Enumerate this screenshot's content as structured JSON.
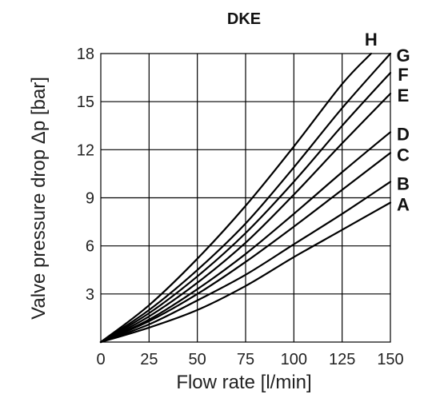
{
  "chart_data": {
    "type": "line",
    "title": "DKE",
    "xlabel": "Flow rate [l/min]",
    "ylabel": "Valve pressure drop Δp [bar]",
    "xlim": [
      0,
      150
    ],
    "ylim": [
      0,
      18
    ],
    "x_ticks": [
      0,
      25,
      50,
      75,
      100,
      125,
      150
    ],
    "y_ticks": [
      3,
      6,
      9,
      12,
      15,
      18
    ],
    "x_tick_labels": [
      "0",
      "25",
      "50",
      "75",
      "100",
      "125",
      "150"
    ],
    "y_tick_labels": [
      "3",
      "6",
      "9",
      "12",
      "15",
      "18"
    ],
    "grid": true,
    "legend": "inline labels at right end of curves",
    "series": [
      {
        "name": "A",
        "x": [
          0,
          25,
          50,
          75,
          100,
          125,
          150
        ],
        "y": [
          0,
          0.9,
          2.0,
          3.5,
          5.3,
          7.0,
          8.7
        ]
      },
      {
        "name": "B",
        "x": [
          0,
          25,
          50,
          75,
          100,
          125,
          150
        ],
        "y": [
          0,
          1.1,
          2.6,
          4.2,
          6.1,
          8.0,
          10.0
        ]
      },
      {
        "name": "C",
        "x": [
          0,
          25,
          50,
          75,
          100,
          125,
          150
        ],
        "y": [
          0,
          1.3,
          3.0,
          5.0,
          7.2,
          9.5,
          11.8
        ]
      },
      {
        "name": "D",
        "x": [
          0,
          25,
          50,
          75,
          100,
          125,
          150
        ],
        "y": [
          0,
          1.4,
          3.3,
          5.5,
          8.0,
          10.6,
          13.1
        ]
      },
      {
        "name": "E",
        "x": [
          0,
          25,
          50,
          75,
          100,
          125,
          150
        ],
        "y": [
          0,
          1.6,
          3.7,
          6.2,
          9.2,
          12.4,
          15.5
        ]
      },
      {
        "name": "F",
        "x": [
          0,
          25,
          50,
          75,
          100,
          125,
          150
        ],
        "y": [
          0,
          1.8,
          4.1,
          6.8,
          10.0,
          13.5,
          16.8
        ]
      },
      {
        "name": "G",
        "x": [
          0,
          25,
          50,
          75,
          100,
          125,
          150
        ],
        "y": [
          0,
          2.0,
          4.5,
          7.4,
          10.9,
          14.6,
          18.0
        ]
      },
      {
        "name": "H",
        "x": [
          0,
          25,
          50,
          75,
          100,
          125,
          140
        ],
        "y": [
          0,
          2.3,
          5.2,
          8.5,
          12.2,
          16.1,
          18.0
        ]
      }
    ]
  }
}
